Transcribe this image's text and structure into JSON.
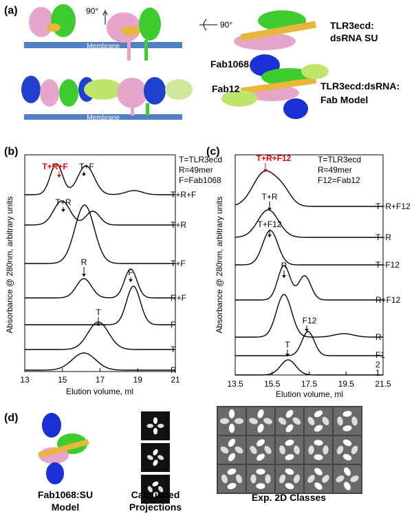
{
  "panel_a": {
    "label": "(a)",
    "rotate_1": "90°",
    "rotate_2": "90°",
    "membrane_1": "Membrane",
    "membrane_2": "Membrane",
    "su_title": [
      "TLR3ecd:",
      "dsRNA SU"
    ],
    "fab1068": "Fab1068",
    "fab12": "Fab12",
    "fab_title": [
      "TLR3ecd:dsRNA:",
      "Fab Model"
    ]
  },
  "panel_b": {
    "label": "(b)",
    "y_label": "Absorbance @ 280nm, arbitrary units",
    "x_label": "Elution volume, ml",
    "x_ticks": [
      "13",
      "15",
      "17",
      "19",
      "21"
    ],
    "legend": [
      "T=TLR3ecd",
      "R=49mer",
      "F=Fab1068"
    ],
    "traces": [
      "T+R+F",
      "T+R",
      "T+F",
      "R+F",
      "F",
      "T",
      "R"
    ],
    "annotations": [
      "T+R+F",
      "T+F",
      "T+R",
      "R",
      "F",
      "T"
    ]
  },
  "panel_c": {
    "label": "(c)",
    "y_label": "Absorbance @ 280nm, arbitrary units",
    "x_label": "Elution volume, ml",
    "x_ticks": [
      "13.5",
      "15.5",
      "17.5",
      "19.5",
      "21.5"
    ],
    "legend": [
      "T=TLR3ecd",
      "R=49mer",
      "F12=Fab12"
    ],
    "traces": [
      "T+R+F12",
      "T+R",
      "T+F12",
      "R+F12",
      "R",
      "F1",
      "2",
      "1"
    ],
    "annotations": [
      "T+R+F12",
      "T+R",
      "T+F12",
      "R",
      "F12",
      "T"
    ]
  },
  "panel_d": {
    "label": "(d)",
    "model": [
      "Fab1068:SU",
      "Model"
    ],
    "projections": [
      "Calculated",
      "Projections"
    ],
    "classes": "Exp. 2D Classes"
  }
}
